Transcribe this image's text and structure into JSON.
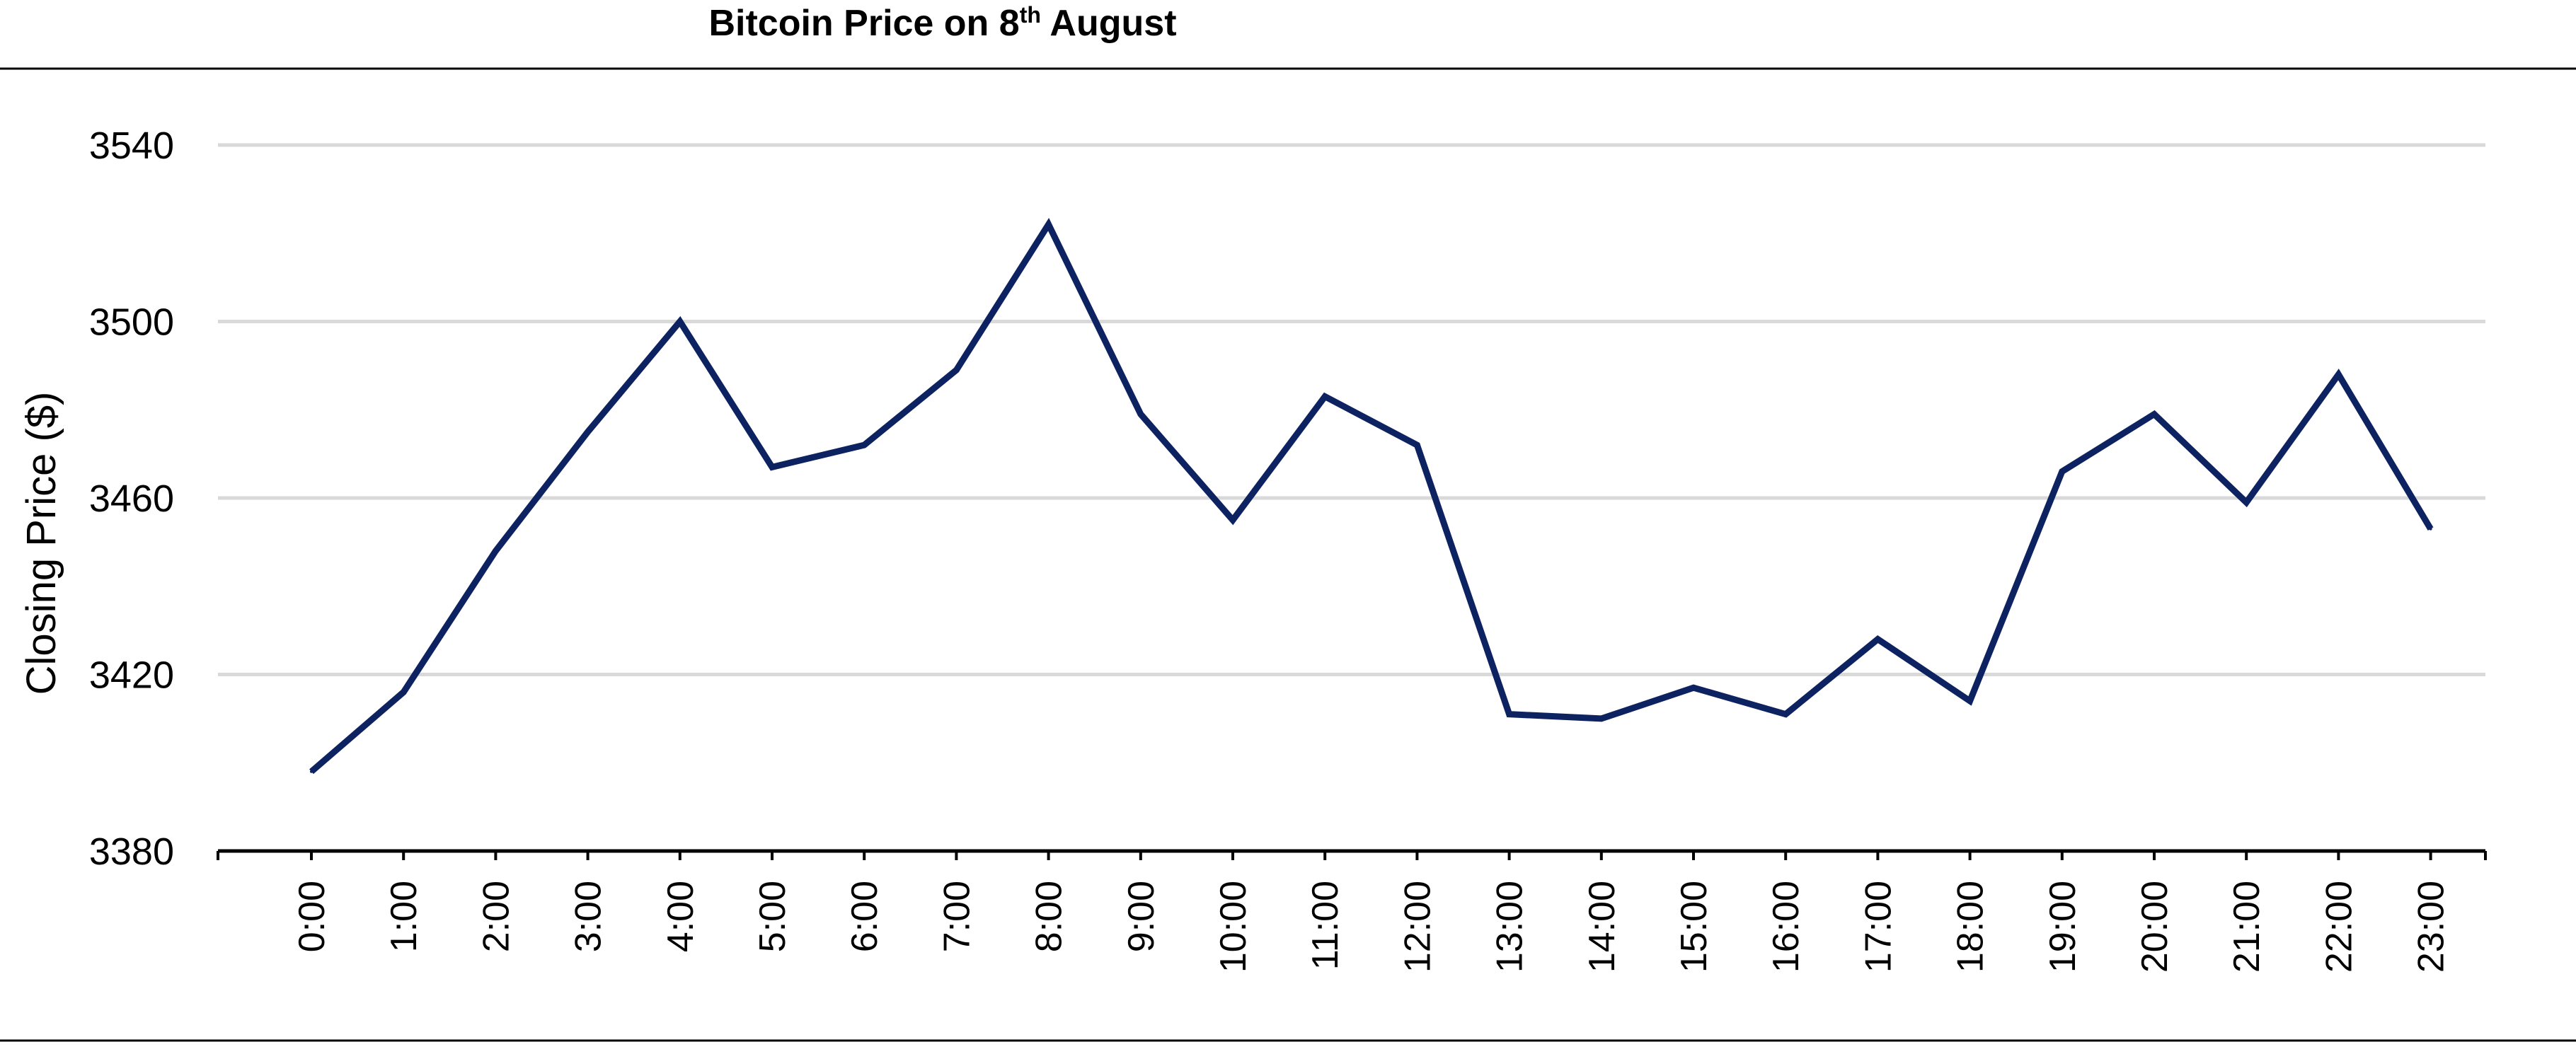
{
  "chart_data": {
    "type": "line",
    "title": "Bitcoin Price on 8",
    "title_superscript": "th",
    "title_suffix": " August",
    "xlabel": "",
    "ylabel": "Closing Price ($)",
    "ylim": [
      3380,
      3540
    ],
    "yticks": [
      "3380",
      "3420",
      "3460",
      "3500",
      "3540"
    ],
    "grid": true,
    "legend": "none",
    "categories": [
      "0:00",
      "1:00",
      "2:00",
      "3:00",
      "4:00",
      "5:00",
      "6:00",
      "7:00",
      "8:00",
      "9:00",
      "10:00",
      "11:00",
      "12:00",
      "13:00",
      "14:00",
      "15:00",
      "16:00",
      "17:00",
      "18:00",
      "19:00",
      "20:00",
      "21:00",
      "22:00",
      "23:00"
    ],
    "series": [
      {
        "values": [
          3398,
          3416,
          3448,
          3475,
          3500,
          3467,
          3472,
          3489,
          3522,
          3479,
          3455,
          3483,
          3472,
          3411,
          3410,
          3417,
          3411,
          3428,
          3414,
          3466,
          3479,
          3459,
          3488,
          3453
        ]
      }
    ],
    "colors": {
      "line": "#0d2260",
      "grid": "#d9d9d9",
      "axis": "#000000"
    }
  }
}
